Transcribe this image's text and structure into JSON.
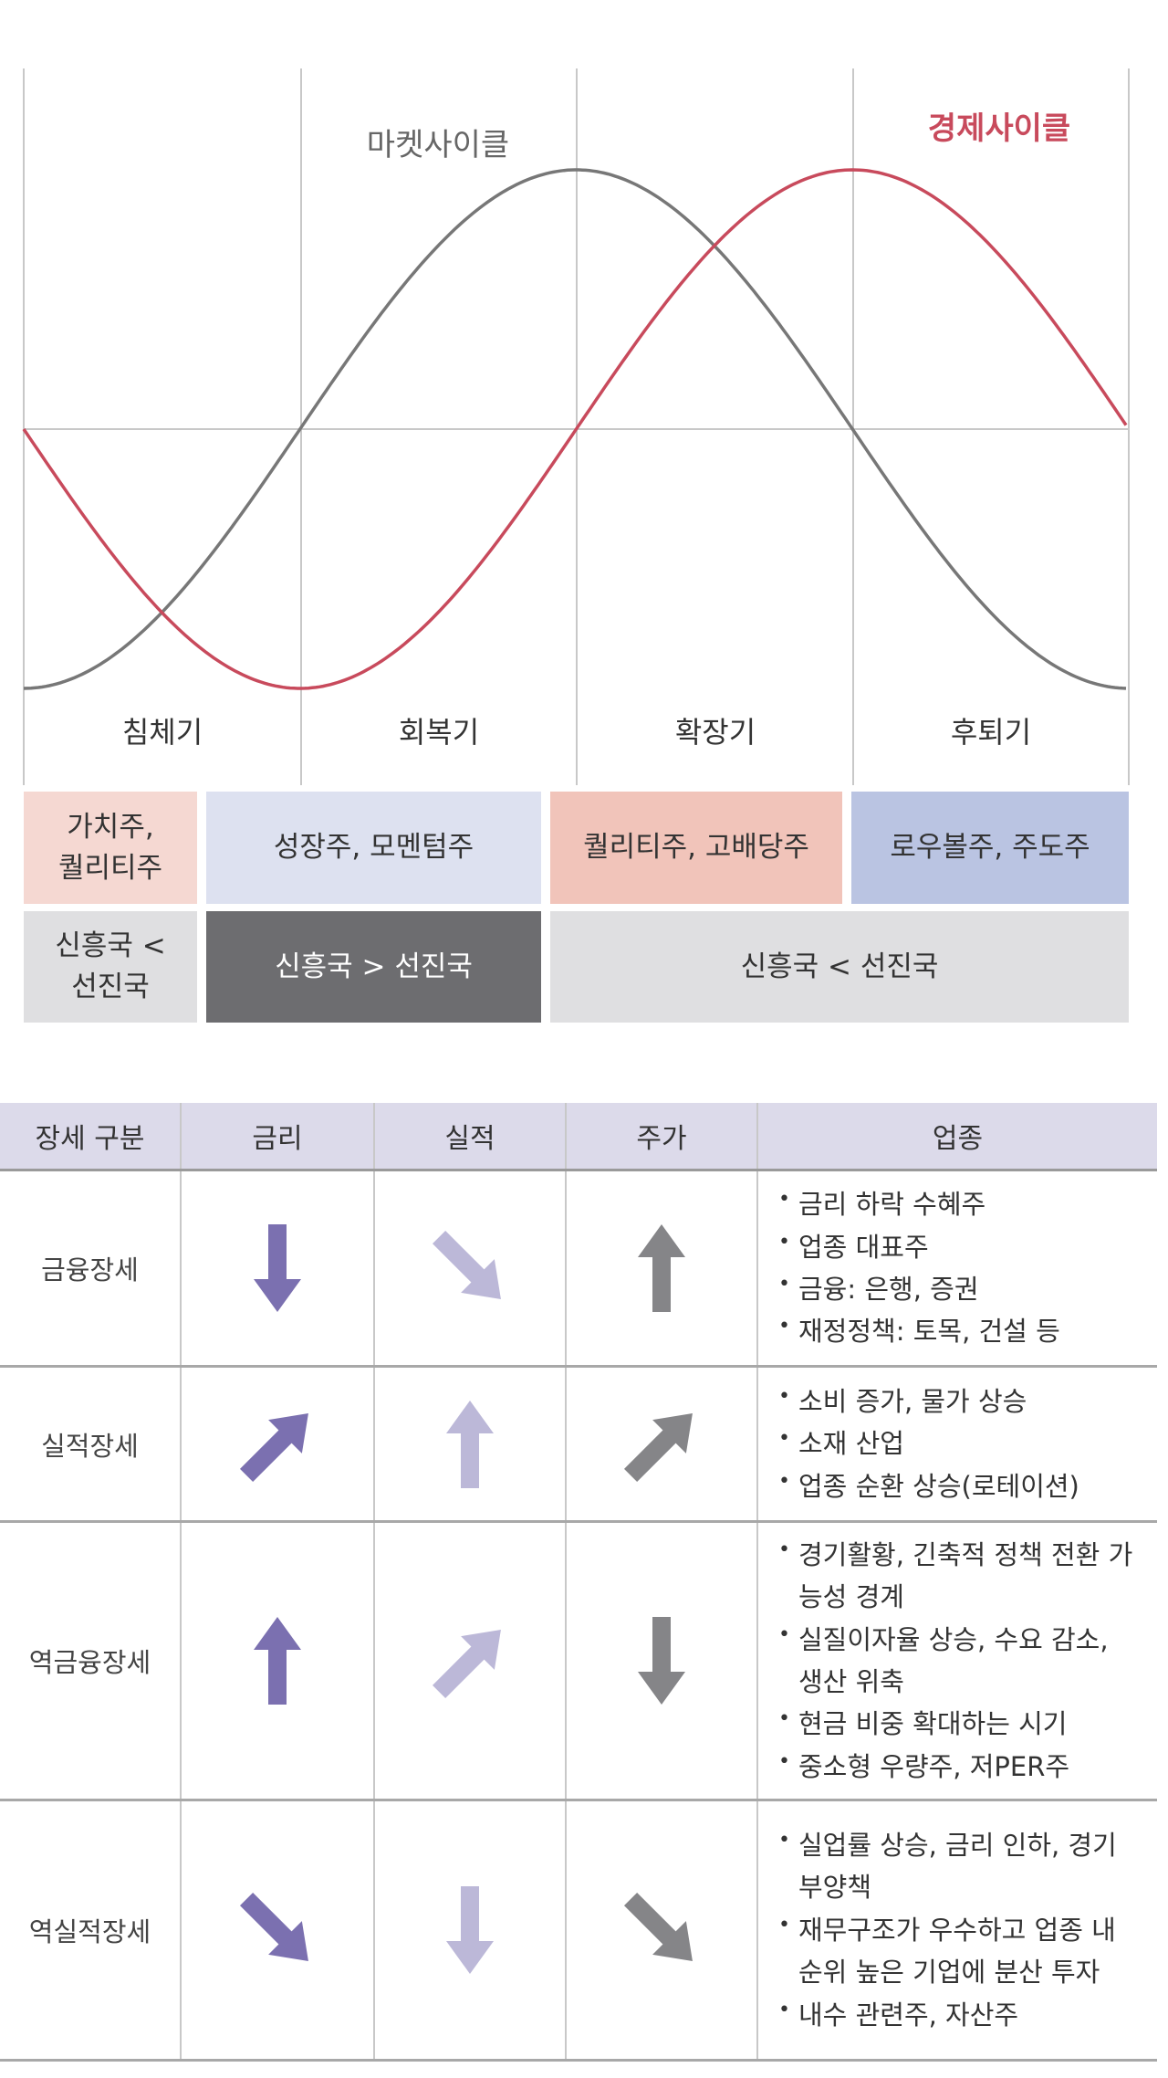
{
  "diagram": {
    "market_cycle_label": "마켓사이클",
    "economic_cycle_label": "경제사이클",
    "phases": [
      "침체기",
      "회복기",
      "확장기",
      "후퇴기"
    ],
    "colors": {
      "market": "#777777",
      "economic": "#c84a5c",
      "grid": "#c8c8c8"
    },
    "style_boxes": [
      {
        "text": "가치주,\n퀄리티주",
        "color": "#f5d8d2"
      },
      {
        "text": "성장주, 모멘텀주",
        "color": "#dde1f0"
      },
      {
        "text": "퀄리티주, 고배당주",
        "color": "#f1c4ba"
      },
      {
        "text": "로우볼주, 주도주",
        "color": "#bac4e2"
      }
    ],
    "region_boxes": [
      {
        "text": "신흥국 <\n선진국",
        "color": "#dfdfe1",
        "text_color": "#333333"
      },
      {
        "text": "신흥국 > 선진국",
        "color": "#6d6d70",
        "text_color": "#ffffff"
      },
      {
        "text": "신흥국 < 선진국",
        "color": "#dfdfe1",
        "text_color": "#333333"
      }
    ]
  },
  "table": {
    "headers": [
      "장세 구분",
      "금리",
      "실적",
      "주가",
      "업종"
    ],
    "header_color": "#dcdaea",
    "arrow_colors": {
      "dark_purple": "#7b70b0",
      "light_purple": "#bcb8d8",
      "gray": "#858588"
    },
    "rows": [
      {
        "label": "금융장세",
        "rate": {
          "direction": "down",
          "color": "dark_purple"
        },
        "earnings": {
          "direction": "down-right",
          "color": "light_purple"
        },
        "price": {
          "direction": "up",
          "color": "gray"
        },
        "sectors": [
          "금리 하락 수혜주",
          "업종 대표주",
          "금융: 은행, 증권",
          "재정정책: 토목, 건설 등"
        ]
      },
      {
        "label": "실적장세",
        "rate": {
          "direction": "up-right",
          "color": "dark_purple"
        },
        "earnings": {
          "direction": "up",
          "color": "light_purple"
        },
        "price": {
          "direction": "up-right",
          "color": "gray"
        },
        "sectors": [
          "소비 증가, 물가 상승",
          "소재 산업",
          "업종 순환 상승(로테이션)"
        ]
      },
      {
        "label": "역금융장세",
        "rate": {
          "direction": "up",
          "color": "dark_purple"
        },
        "earnings": {
          "direction": "up-right",
          "color": "light_purple"
        },
        "price": {
          "direction": "down",
          "color": "gray"
        },
        "sectors": [
          "경기활황, 긴축적 정책 전환 가능성 경계",
          "실질이자율 상승, 수요 감소, 생산 위축",
          "현금 비중 확대하는 시기",
          "중소형 우량주, 저PER주"
        ]
      },
      {
        "label": "역실적장세",
        "rate": {
          "direction": "down-right",
          "color": "dark_purple"
        },
        "earnings": {
          "direction": "down",
          "color": "light_purple"
        },
        "price": {
          "direction": "down-right",
          "color": "gray"
        },
        "sectors": [
          "실업률 상승, 금리 인하, 경기 부양책",
          "재무구조가 우수하고 업종 내 순위 높은 기업에 분산 투자",
          "내수 관련주, 자산주"
        ]
      }
    ]
  }
}
